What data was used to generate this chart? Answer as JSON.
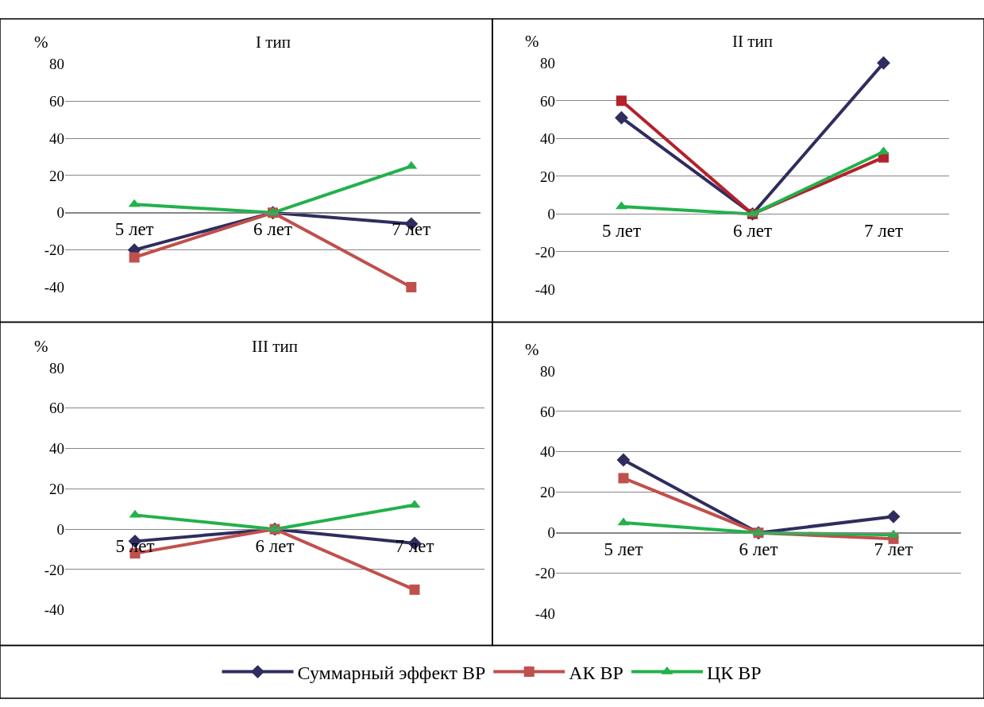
{
  "chart_data": [
    {
      "type": "line",
      "title": "I тип",
      "ylabel": "%",
      "categories": [
        "5 лет",
        "6 лет",
        "7 лет"
      ],
      "ylim": [
        -40,
        80
      ],
      "yticks": [
        -40,
        -20,
        0,
        20,
        40,
        60,
        80
      ],
      "grid": "y",
      "legend": "bottom",
      "series": [
        {
          "name": "Суммарный эффект ВР",
          "color": "#2f2d5e",
          "marker": "diamond",
          "values": [
            -20,
            0,
            -6
          ]
        },
        {
          "name": "АК ВР",
          "color": "#c0504d",
          "marker": "square",
          "values": [
            -24,
            0,
            -40
          ]
        },
        {
          "name": "ЦК ВР",
          "color": "#22b14c",
          "marker": "triangle",
          "values": [
            4.5,
            0,
            25
          ]
        }
      ]
    },
    {
      "type": "line",
      "title": "II тип",
      "ylabel": "%",
      "categories": [
        "5 лет",
        "6 лет",
        "7 лет"
      ],
      "ylim": [
        -40,
        80
      ],
      "yticks": [
        -40,
        -20,
        0,
        20,
        40,
        60,
        80
      ],
      "grid": "y",
      "series": [
        {
          "color": "#2f2d5e",
          "marker": "diamond",
          "values": [
            51,
            0,
            80
          ]
        },
        {
          "color": "#b5202a",
          "marker": "square",
          "values": [
            60,
            0,
            30
          ]
        },
        {
          "color": "#22b14c",
          "marker": "triangle",
          "values": [
            4,
            0,
            33
          ]
        }
      ]
    },
    {
      "type": "line",
      "title": "III тип",
      "ylabel": "%",
      "categories": [
        "5 лет",
        "6 лет",
        "7 лет"
      ],
      "ylim": [
        -40,
        80
      ],
      "yticks": [
        -40,
        -20,
        0,
        20,
        40,
        60,
        80
      ],
      "grid": "y",
      "series": [
        {
          "color": "#2f2d5e",
          "marker": "diamond",
          "values": [
            -6,
            0,
            -7
          ]
        },
        {
          "color": "#c0504d",
          "marker": "square",
          "values": [
            -12,
            0,
            -30
          ]
        },
        {
          "color": "#22b14c",
          "marker": "triangle",
          "values": [
            7,
            0,
            12
          ]
        }
      ]
    },
    {
      "type": "line",
      "ylabel": "%",
      "categories": [
        "5 лет",
        "6 лет",
        "7 лет"
      ],
      "ylim": [
        -40,
        80
      ],
      "yticks": [
        -40,
        -20,
        0,
        20,
        40,
        60,
        80
      ],
      "grid": "y",
      "series": [
        {
          "color": "#2f2d5e",
          "marker": "diamond",
          "values": [
            36,
            0,
            8
          ]
        },
        {
          "color": "#c0504d",
          "marker": "square",
          "values": [
            27,
            0,
            -3
          ]
        },
        {
          "color": "#22b14c",
          "marker": "triangle",
          "values": [
            5,
            0,
            -1
          ]
        }
      ]
    }
  ]
}
